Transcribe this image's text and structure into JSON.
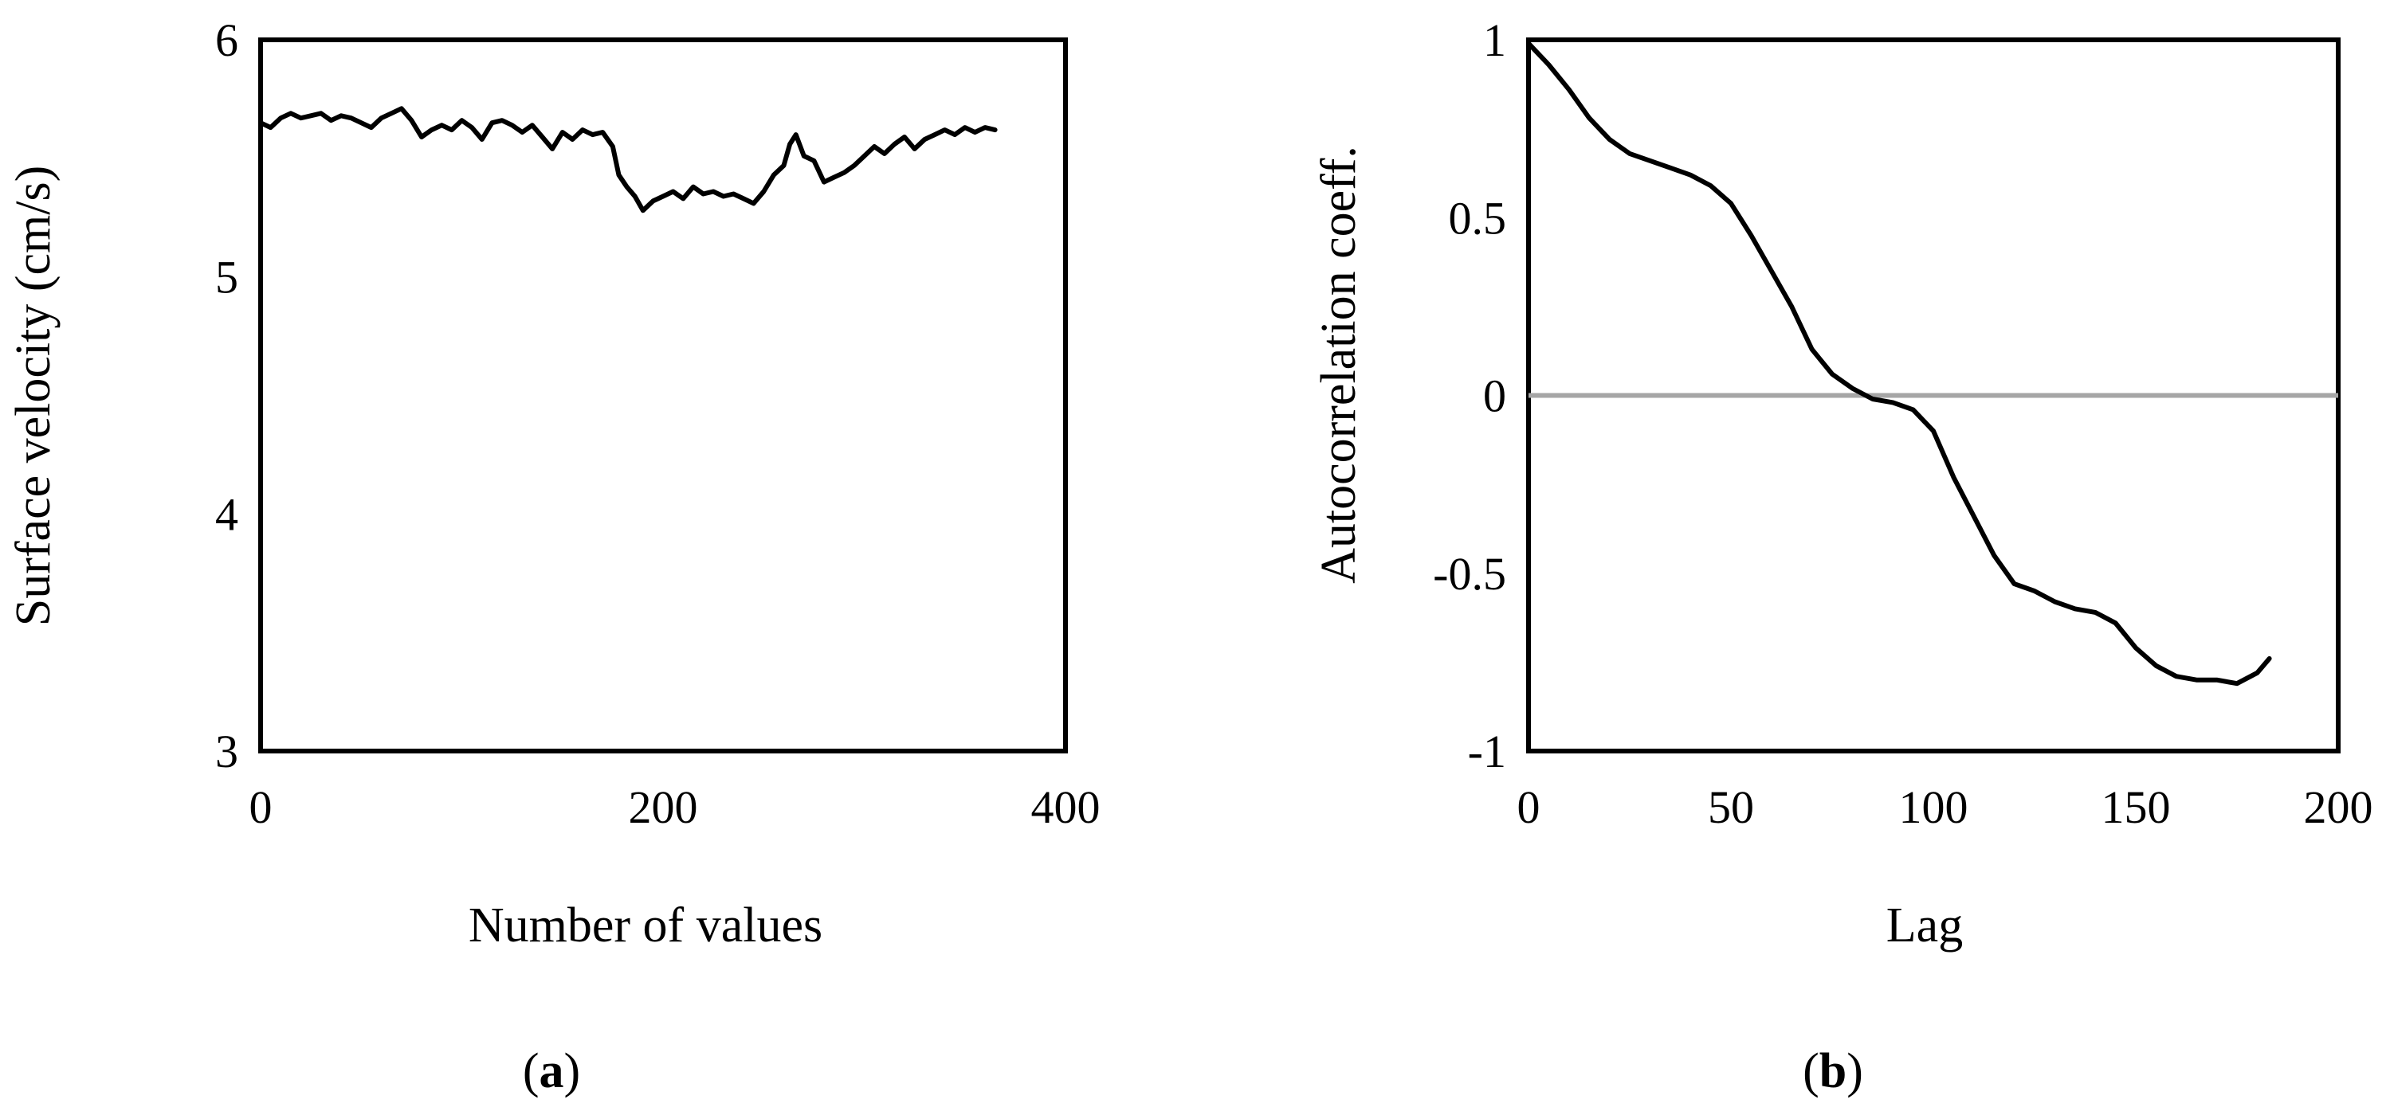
{
  "chart_data": [
    {
      "panel": "a",
      "type": "line",
      "xlabel": "Number of values",
      "ylabel": "Surface velocity (cm/s)",
      "xlim": [
        0,
        400
      ],
      "ylim": [
        3,
        6
      ],
      "xticks": [
        "0",
        "200",
        "400"
      ],
      "yticks": [
        "3",
        "4",
        "5",
        "6"
      ],
      "grid": false,
      "series": [
        {
          "color": "#000000",
          "x": [
            0,
            5,
            10,
            15,
            20,
            25,
            30,
            35,
            40,
            45,
            50,
            55,
            60,
            65,
            70,
            75,
            80,
            85,
            90,
            95,
            100,
            105,
            110,
            115,
            120,
            125,
            130,
            135,
            140,
            145,
            150,
            155,
            160,
            165,
            170,
            175,
            178,
            182,
            186,
            190,
            195,
            200,
            205,
            210,
            215,
            220,
            225,
            230,
            235,
            240,
            245,
            250,
            255,
            260,
            263,
            266,
            270,
            275,
            280,
            285,
            290,
            295,
            300,
            305,
            310,
            315,
            320,
            325,
            330,
            335,
            340,
            345,
            350,
            355,
            360,
            365
          ],
          "y": [
            5.65,
            5.63,
            5.67,
            5.69,
            5.67,
            5.68,
            5.69,
            5.66,
            5.68,
            5.67,
            5.65,
            5.63,
            5.67,
            5.69,
            5.71,
            5.66,
            5.59,
            5.62,
            5.64,
            5.62,
            5.66,
            5.63,
            5.58,
            5.65,
            5.66,
            5.64,
            5.61,
            5.64,
            5.59,
            5.54,
            5.61,
            5.58,
            5.62,
            5.6,
            5.61,
            5.55,
            5.43,
            5.38,
            5.34,
            5.28,
            5.32,
            5.34,
            5.36,
            5.33,
            5.38,
            5.35,
            5.36,
            5.34,
            5.35,
            5.33,
            5.31,
            5.36,
            5.43,
            5.47,
            5.56,
            5.6,
            5.51,
            5.49,
            5.4,
            5.42,
            5.44,
            5.47,
            5.51,
            5.55,
            5.52,
            5.56,
            5.59,
            5.54,
            5.58,
            5.6,
            5.62,
            5.6,
            5.63,
            5.61,
            5.63,
            5.62
          ]
        }
      ],
      "caption_letter": "a"
    },
    {
      "panel": "b",
      "type": "line",
      "xlabel": "Lag",
      "ylabel": "Autocorrelation coeff.",
      "xlim": [
        0,
        200
      ],
      "ylim": [
        -1,
        1
      ],
      "xticks": [
        "0",
        "50",
        "100",
        "150",
        "200"
      ],
      "yticks": [
        "-1",
        "-0.5",
        "0",
        "0.5",
        "1"
      ],
      "grid": false,
      "zero_line_color": "#a6a6a6",
      "series": [
        {
          "color": "#000000",
          "x": [
            0,
            5,
            10,
            15,
            20,
            25,
            30,
            35,
            40,
            45,
            50,
            55,
            60,
            65,
            70,
            75,
            80,
            85,
            90,
            95,
            100,
            105,
            110,
            115,
            120,
            125,
            130,
            135,
            140,
            145,
            150,
            155,
            160,
            165,
            170,
            175,
            180,
            183
          ],
          "y": [
            0.99,
            0.93,
            0.86,
            0.78,
            0.72,
            0.68,
            0.66,
            0.64,
            0.62,
            0.59,
            0.54,
            0.45,
            0.35,
            0.25,
            0.13,
            0.06,
            0.02,
            -0.01,
            -0.02,
            -0.04,
            -0.1,
            -0.23,
            -0.34,
            -0.45,
            -0.53,
            -0.55,
            -0.58,
            -0.6,
            -0.61,
            -0.64,
            -0.71,
            -0.76,
            -0.79,
            -0.8,
            -0.8,
            -0.81,
            -0.78,
            -0.74
          ]
        }
      ],
      "caption_letter": "b"
    }
  ]
}
